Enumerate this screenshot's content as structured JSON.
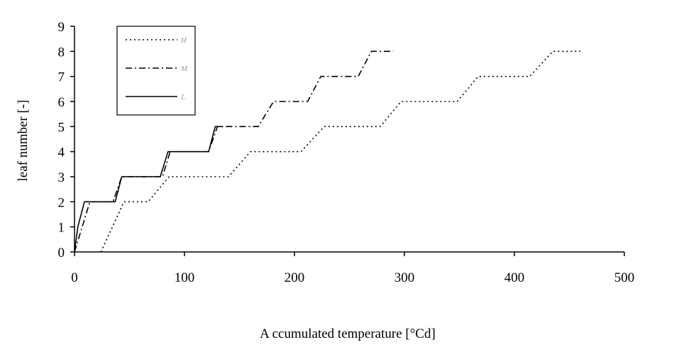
{
  "chart_data": {
    "type": "line",
    "title": "",
    "xlabel": "A ccumulated temperature [°Cd]",
    "ylabel": "leaf number [-]",
    "xlim": [
      0,
      500
    ],
    "ylim": [
      0,
      9
    ],
    "x_ticks": [
      "0",
      "100",
      "200",
      "300",
      "400",
      "500"
    ],
    "y_ticks": [
      "0",
      "1",
      "2",
      "3",
      "4",
      "5",
      "6",
      "7",
      "8",
      "9"
    ],
    "grid": false,
    "legend_position": "top-left",
    "series": [
      {
        "name": "H",
        "style": "dotted",
        "x": [
          24,
          45,
          67,
          86,
          140,
          160,
          206,
          227,
          278,
          297,
          348,
          367,
          414,
          435,
          460
        ],
        "y": [
          0,
          2,
          2,
          3,
          3,
          4,
          4,
          5,
          5,
          6,
          6,
          7,
          7,
          8,
          8
        ]
      },
      {
        "name": "M",
        "style": "dash-dot",
        "x": [
          0,
          14,
          35,
          43,
          80,
          87,
          122,
          130,
          167,
          181,
          212,
          224,
          258,
          270,
          290
        ],
        "y": [
          0,
          2,
          2,
          3,
          3,
          4,
          4,
          5,
          5,
          6,
          6,
          7,
          7,
          8,
          8
        ]
      },
      {
        "name": "L",
        "style": "solid",
        "x": [
          0,
          3,
          9,
          37,
          43,
          78,
          85,
          122,
          128,
          135
        ],
        "y": [
          0,
          1,
          2,
          2,
          3,
          3,
          4,
          4,
          5,
          5
        ]
      }
    ]
  }
}
